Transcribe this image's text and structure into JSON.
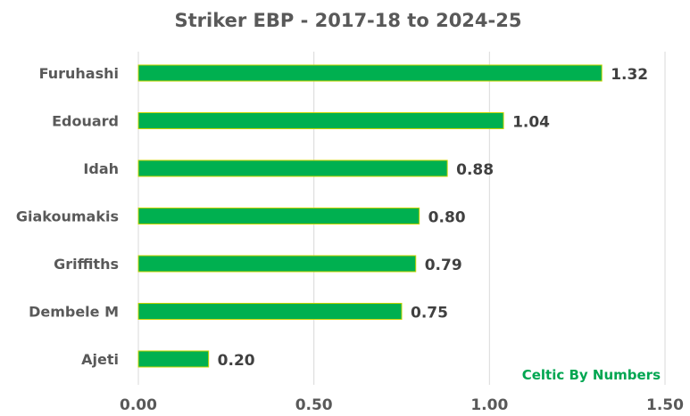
{
  "chart_data": {
    "type": "bar",
    "orientation": "horizontal",
    "title": "Striker EBP - 2017-18 to 2024-25",
    "categories": [
      "Furuhashi",
      "Edouard",
      "Idah",
      "Giakoumakis",
      "Griffiths",
      "Dembele M",
      "Ajeti"
    ],
    "values": [
      1.32,
      1.04,
      0.88,
      0.8,
      0.79,
      0.75,
      0.2
    ],
    "value_labels": [
      "1.32",
      "1.04",
      "0.88",
      "0.80",
      "0.79",
      "0.75",
      "0.20"
    ],
    "xlim": [
      0,
      1.5
    ],
    "xticks": [
      0,
      0.5,
      1.0,
      1.5
    ],
    "xtick_labels": [
      "0.00",
      "0.50",
      "1.00",
      "1.50"
    ],
    "grid": true,
    "bar_color": "#00b050",
    "bar_edge_color": "#c8d400"
  },
  "watermark": "Celtic By Numbers",
  "colors": {
    "text": "#595959",
    "watermark": "#00a651"
  }
}
